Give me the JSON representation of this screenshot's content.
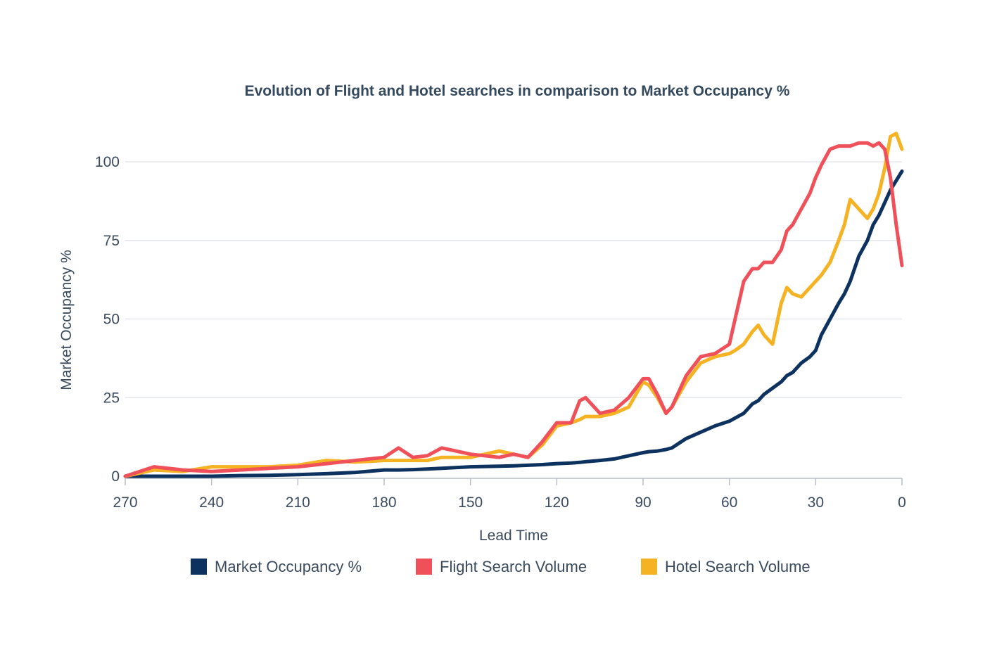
{
  "chart_data": {
    "type": "line",
    "title": "Evolution of Flight and Hotel searches in comparison to Market Occupancy %",
    "xlabel": "Lead Time",
    "ylabel": "Market Occupancy %",
    "xlim": [
      270,
      0
    ],
    "ylim": [
      0,
      112
    ],
    "x_ticks": [
      270,
      240,
      210,
      180,
      150,
      120,
      90,
      60,
      30,
      0
    ],
    "y_ticks": [
      0,
      25,
      50,
      75,
      100
    ],
    "grid": true,
    "legend_position": "bottom",
    "x": [
      270,
      260,
      250,
      240,
      230,
      220,
      210,
      200,
      190,
      180,
      175,
      170,
      165,
      160,
      150,
      140,
      135,
      130,
      125,
      120,
      115,
      112,
      110,
      105,
      100,
      95,
      90,
      88,
      85,
      82,
      80,
      75,
      70,
      65,
      60,
      58,
      55,
      52,
      50,
      48,
      45,
      42,
      40,
      38,
      35,
      32,
      30,
      28,
      25,
      22,
      20,
      18,
      15,
      12,
      10,
      8,
      6,
      4,
      2,
      0
    ],
    "series": [
      {
        "name": "Market Occupancy %",
        "color": "#0d3260",
        "values": [
          0,
          0,
          0,
          0,
          0.2,
          0.3,
          0.5,
          0.8,
          1.2,
          2,
          2,
          2.1,
          2.3,
          2.5,
          3,
          3.2,
          3.3,
          3.5,
          3.7,
          4,
          4.2,
          4.4,
          4.6,
          5,
          5.5,
          6.5,
          7.5,
          7.8,
          8,
          8.5,
          9,
          12,
          14,
          16,
          17.5,
          18.5,
          20,
          23,
          24,
          26,
          28,
          30,
          32,
          33,
          36,
          38,
          40,
          45,
          50,
          55,
          58,
          62,
          70,
          75,
          80,
          83,
          87,
          91,
          94,
          97
        ]
      },
      {
        "name": "Flight Search Volume",
        "color": "#f0505a",
        "values": [
          0,
          3,
          2,
          1.5,
          2,
          2.5,
          3,
          4,
          5,
          6,
          9,
          6,
          6.5,
          9,
          7,
          6,
          7,
          6,
          11,
          17,
          17,
          24,
          25,
          20,
          21,
          25,
          31,
          31,
          26,
          20,
          22,
          32,
          38,
          39,
          42,
          50,
          62,
          66,
          66,
          68,
          68,
          72,
          78,
          80,
          85,
          90,
          95,
          99,
          104,
          105,
          105,
          105,
          106,
          106,
          105,
          106,
          104,
          95,
          80,
          67
        ]
      },
      {
        "name": "Hotel Search Volume",
        "color": "#f5b324",
        "values": [
          0,
          2,
          1.5,
          3,
          3,
          3,
          3.5,
          5,
          4.5,
          5,
          5,
          5,
          5,
          6,
          6,
          8,
          7,
          6,
          10,
          16,
          17,
          18,
          19,
          19,
          20,
          22,
          30,
          29,
          25,
          20,
          22,
          30,
          36,
          38,
          39,
          40,
          42,
          46,
          48,
          45,
          42,
          55,
          60,
          58,
          57,
          60,
          62,
          64,
          68,
          75,
          80,
          88,
          85,
          82,
          85,
          90,
          98,
          108,
          109,
          104
        ]
      }
    ]
  }
}
